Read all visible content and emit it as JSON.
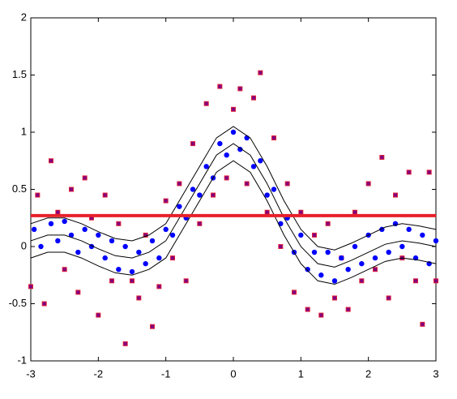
{
  "chart_data": {
    "type": "scatter",
    "xlim": [
      -3,
      3
    ],
    "ylim": [
      -1,
      2
    ],
    "xticks": [
      -3,
      -2,
      -1,
      0,
      1,
      2,
      3
    ],
    "yticks": [
      -1,
      -0.5,
      0,
      0.5,
      1,
      1.5,
      2
    ],
    "series": [
      {
        "style": "points",
        "marker": "square",
        "color": "#800080",
        "edge": "#e0203a",
        "x": [
          -3.0,
          -2.9,
          -2.8,
          -2.7,
          -2.6,
          -2.5,
          -2.4,
          -2.3,
          -2.2,
          -2.1,
          -2.0,
          -1.9,
          -1.8,
          -1.7,
          -1.6,
          -1.5,
          -1.4,
          -1.3,
          -1.2,
          -1.1,
          -1.0,
          -0.9,
          -0.8,
          -0.7,
          -0.6,
          -0.5,
          -0.4,
          -0.3,
          -0.2,
          -0.1,
          0.0,
          0.1,
          0.2,
          0.3,
          0.4,
          0.5,
          0.6,
          0.7,
          0.8,
          0.9,
          1.0,
          1.1,
          1.2,
          1.3,
          1.4,
          1.5,
          1.6,
          1.7,
          1.8,
          1.9,
          2.0,
          2.1,
          2.2,
          2.3,
          2.4,
          2.5,
          2.6,
          2.7,
          2.8,
          2.9,
          3.0
        ],
        "values": [
          -0.35,
          0.45,
          -0.5,
          0.75,
          0.3,
          -0.2,
          0.5,
          -0.4,
          0.6,
          0.25,
          -0.6,
          0.45,
          -0.3,
          0.2,
          -0.85,
          -0.3,
          -0.45,
          0.1,
          -0.7,
          -0.35,
          0.4,
          -0.1,
          0.55,
          -0.3,
          0.9,
          0.2,
          1.25,
          0.45,
          1.4,
          0.6,
          1.2,
          1.38,
          0.55,
          1.3,
          1.52,
          0.3,
          0.95,
          0.0,
          0.55,
          -0.4,
          0.3,
          -0.55,
          0.1,
          -0.6,
          0.2,
          -0.45,
          -0.1,
          -0.55,
          0.3,
          -0.3,
          0.55,
          -0.2,
          0.78,
          -0.45,
          0.45,
          -0.1,
          0.65,
          -0.3,
          -0.68,
          0.65,
          -0.3
        ]
      },
      {
        "style": "points",
        "marker": "dot",
        "color": "#0000ff",
        "x": [
          -2.95,
          -2.85,
          -2.7,
          -2.6,
          -2.5,
          -2.4,
          -2.3,
          -2.2,
          -2.1,
          -2.0,
          -1.9,
          -1.8,
          -1.7,
          -1.6,
          -1.5,
          -1.4,
          -1.3,
          -1.2,
          -1.1,
          -1.0,
          -0.9,
          -0.8,
          -0.7,
          -0.6,
          -0.5,
          -0.4,
          -0.3,
          -0.2,
          -0.1,
          0.0,
          0.1,
          0.2,
          0.3,
          0.4,
          0.5,
          0.6,
          0.7,
          0.8,
          0.9,
          1.0,
          1.1,
          1.2,
          1.3,
          1.4,
          1.5,
          1.6,
          1.7,
          1.8,
          1.9,
          2.0,
          2.1,
          2.2,
          2.3,
          2.4,
          2.5,
          2.6,
          2.7,
          2.8,
          2.9,
          3.0
        ],
        "values": [
          0.15,
          0.0,
          0.2,
          0.05,
          0.22,
          0.1,
          -0.05,
          0.15,
          0.0,
          0.1,
          -0.1,
          0.05,
          -0.2,
          0.0,
          -0.22,
          -0.05,
          -0.15,
          0.05,
          -0.1,
          0.15,
          0.1,
          0.35,
          0.25,
          0.5,
          0.45,
          0.7,
          0.6,
          0.9,
          0.8,
          1.0,
          0.85,
          0.95,
          0.7,
          0.75,
          0.45,
          0.5,
          0.2,
          0.25,
          -0.05,
          0.1,
          -0.2,
          -0.05,
          -0.25,
          -0.05,
          -0.3,
          -0.1,
          -0.2,
          0.0,
          -0.15,
          0.1,
          -0.1,
          0.15,
          -0.05,
          0.2,
          0.0,
          0.15,
          -0.1,
          0.1,
          -0.15,
          0.05
        ]
      },
      {
        "style": "line",
        "color": "#000000",
        "width": 1,
        "x": [
          -3,
          -2.75,
          -2.5,
          -2.25,
          -2,
          -1.75,
          -1.5,
          -1.25,
          -1,
          -0.75,
          -0.5,
          -0.25,
          0,
          0.25,
          0.5,
          0.75,
          1,
          1.25,
          1.5,
          1.75,
          2,
          2.25,
          2.5,
          2.75,
          3
        ],
        "values": [
          0.05,
          0.1,
          0.1,
          0.05,
          -0.02,
          -0.08,
          -0.1,
          -0.05,
          0.05,
          0.3,
          0.55,
          0.8,
          0.9,
          0.8,
          0.55,
          0.25,
          0.0,
          -0.15,
          -0.18,
          -0.12,
          -0.05,
          0.02,
          0.05,
          0.03,
          0.0
        ]
      },
      {
        "style": "line",
        "color": "#000000",
        "width": 1,
        "x": [
          -3,
          -2.75,
          -2.5,
          -2.25,
          -2,
          -1.75,
          -1.5,
          -1.25,
          -1,
          -0.75,
          -0.5,
          -0.25,
          0,
          0.25,
          0.5,
          0.75,
          1,
          1.25,
          1.5,
          1.75,
          2,
          2.25,
          2.5,
          2.75,
          3
        ],
        "values": [
          0.2,
          0.25,
          0.25,
          0.2,
          0.13,
          0.07,
          0.05,
          0.1,
          0.2,
          0.45,
          0.7,
          0.95,
          1.05,
          0.95,
          0.7,
          0.4,
          0.15,
          0.0,
          -0.03,
          0.03,
          0.1,
          0.17,
          0.2,
          0.18,
          0.15
        ]
      },
      {
        "style": "line",
        "color": "#000000",
        "width": 1,
        "x": [
          -3,
          -2.75,
          -2.5,
          -2.25,
          -2,
          -1.75,
          -1.5,
          -1.25,
          -1,
          -0.75,
          -0.5,
          -0.25,
          0,
          0.25,
          0.5,
          0.75,
          1,
          1.25,
          1.5,
          1.75,
          2,
          2.25,
          2.5,
          2.75,
          3
        ],
        "values": [
          -0.1,
          -0.05,
          -0.05,
          -0.1,
          -0.17,
          -0.23,
          -0.25,
          -0.2,
          -0.1,
          0.15,
          0.4,
          0.65,
          0.75,
          0.65,
          0.4,
          0.1,
          -0.15,
          -0.3,
          -0.33,
          -0.27,
          -0.2,
          -0.13,
          -0.1,
          -0.12,
          -0.15
        ]
      },
      {
        "style": "line",
        "color": "#e8202a",
        "width": 4,
        "x": [
          -3,
          3
        ],
        "values": [
          0.27,
          0.27
        ]
      }
    ]
  }
}
